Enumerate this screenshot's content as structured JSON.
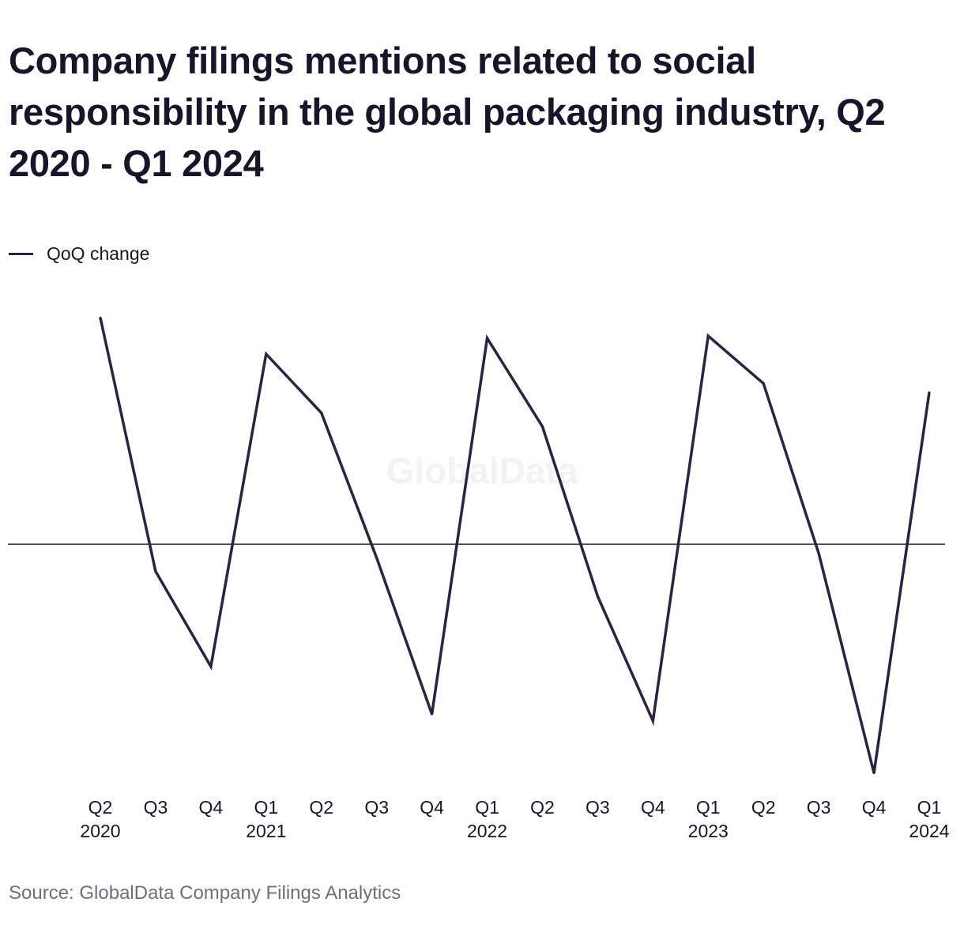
{
  "chart_data": {
    "type": "line",
    "title": "Company filings mentions related to social responsibility in the global packaging industry, Q2 2020 - Q1 2024",
    "xlabel": "",
    "ylabel": "",
    "watermark": "GlobalData",
    "categories": [
      [
        "Q2",
        "2020"
      ],
      [
        "Q3",
        ""
      ],
      [
        "Q4",
        ""
      ],
      [
        "Q1",
        "2021"
      ],
      [
        "Q2",
        ""
      ],
      [
        "Q3",
        ""
      ],
      [
        "Q4",
        ""
      ],
      [
        "Q1",
        "2022"
      ],
      [
        "Q2",
        ""
      ],
      [
        "Q3",
        ""
      ],
      [
        "Q4",
        ""
      ],
      [
        "Q1",
        "2023"
      ],
      [
        "Q2",
        ""
      ],
      [
        "Q3",
        ""
      ],
      [
        "Q4",
        ""
      ],
      [
        "Q1",
        "2024"
      ]
    ],
    "series": [
      {
        "name": "QoQ change",
        "color": "#2d2144",
        "values": [
          10.0,
          -1.2,
          -5.4,
          8.4,
          5.8,
          -0.6,
          -7.5,
          9.1,
          5.2,
          -2.3,
          -7.8,
          9.2,
          7.1,
          -0.4,
          -10.1,
          6.7
        ]
      }
    ],
    "ylim": [
      -10.5,
      10.5
    ],
    "zero_line": true,
    "grid": false,
    "legend_position": "top-left"
  },
  "source": "Source: GlobalData Company Filings Analytics"
}
